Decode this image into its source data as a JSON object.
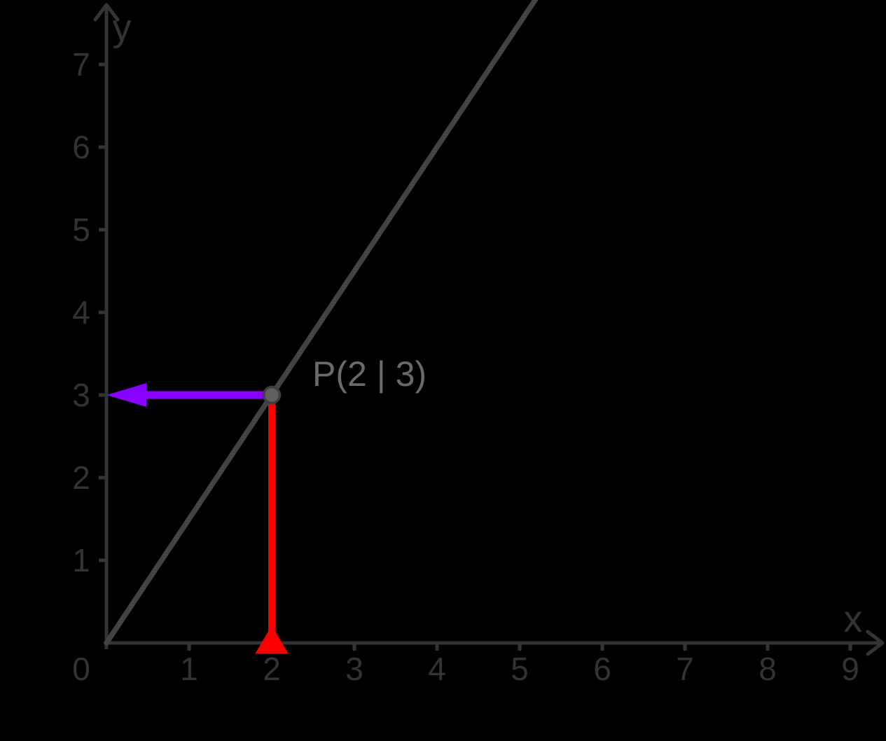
{
  "colors": {
    "background": "#000000",
    "axis": "#343434",
    "axis_label": "#333333",
    "line": "#434343",
    "point_fill": "#616161",
    "point_stroke": "#3f3f3f",
    "point_label": "#6a6a6a",
    "y_vector": "#8800ff",
    "x_vector": "#ff0000"
  },
  "chart_data": {
    "type": "line",
    "title": "",
    "xlabel": "x",
    "ylabel": "y",
    "origin_label": "0",
    "xlim": [
      0,
      9.4
    ],
    "ylim": [
      0,
      7.8
    ],
    "x_ticks": [
      "1",
      "2",
      "3",
      "4",
      "5",
      "6",
      "7",
      "8",
      "9"
    ],
    "y_ticks": [
      "1",
      "2",
      "3",
      "4",
      "5",
      "6",
      "7"
    ],
    "grid": false,
    "legend": false,
    "series": [
      {
        "name": "line-through-origin",
        "equation": "y = 1.5x",
        "slope": 1.5,
        "intercept": 0,
        "x_range": [
          0,
          5.2
        ],
        "color_key": "line"
      }
    ],
    "point": {
      "label": "P(2 | 3)",
      "x": 2,
      "y": 3
    },
    "vectors": [
      {
        "name": "y-value-arrow",
        "from": [
          2,
          3
        ],
        "to": [
          0,
          3
        ],
        "direction": "left",
        "color_key": "y_vector"
      },
      {
        "name": "x-value-arrow",
        "from": [
          2,
          3
        ],
        "to": [
          2,
          0
        ],
        "direction": "down",
        "color_key": "x_vector"
      }
    ]
  }
}
